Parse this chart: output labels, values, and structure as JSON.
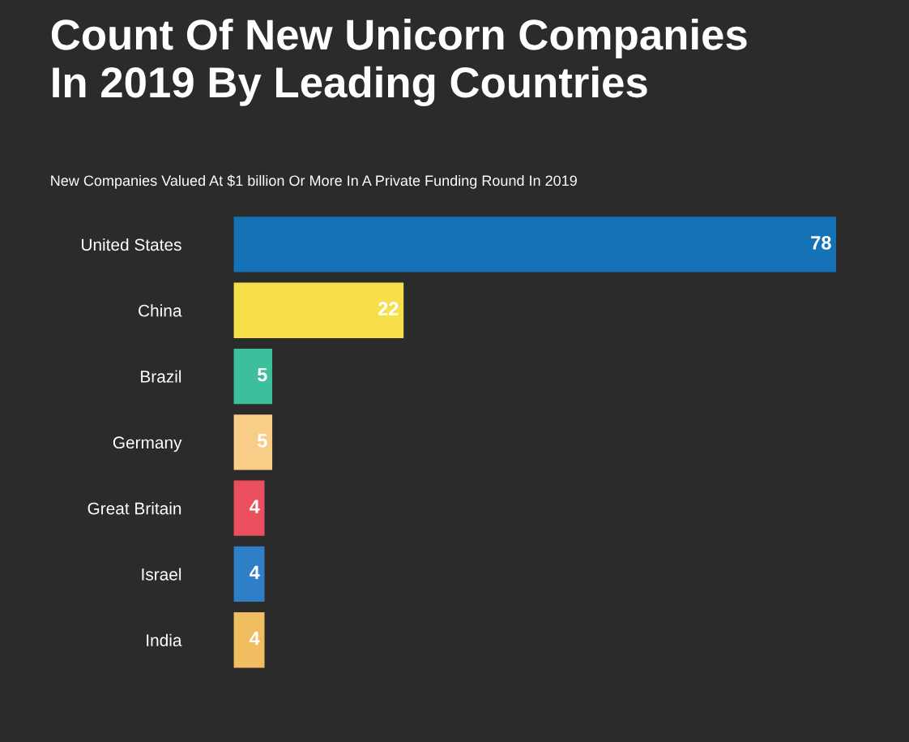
{
  "chart_data": {
    "type": "bar",
    "orientation": "horizontal",
    "title": "Count Of New Unicorn Companies\nIn 2019 By Leading Countries",
    "subtitle": "New Companies Valued At $1 billion Or More In A Private Funding Round In 2019",
    "categories": [
      "United States",
      "China",
      "Brazil",
      "Germany",
      "Great Britain",
      "Israel",
      "India"
    ],
    "values": [
      78,
      22,
      5,
      5,
      4,
      4,
      4
    ],
    "colors": [
      "#1572b6",
      "#f7df4a",
      "#3dbf9c",
      "#f8cd88",
      "#ea4f5d",
      "#2f7fc8",
      "#f0bd60"
    ],
    "data_labels": true
  }
}
